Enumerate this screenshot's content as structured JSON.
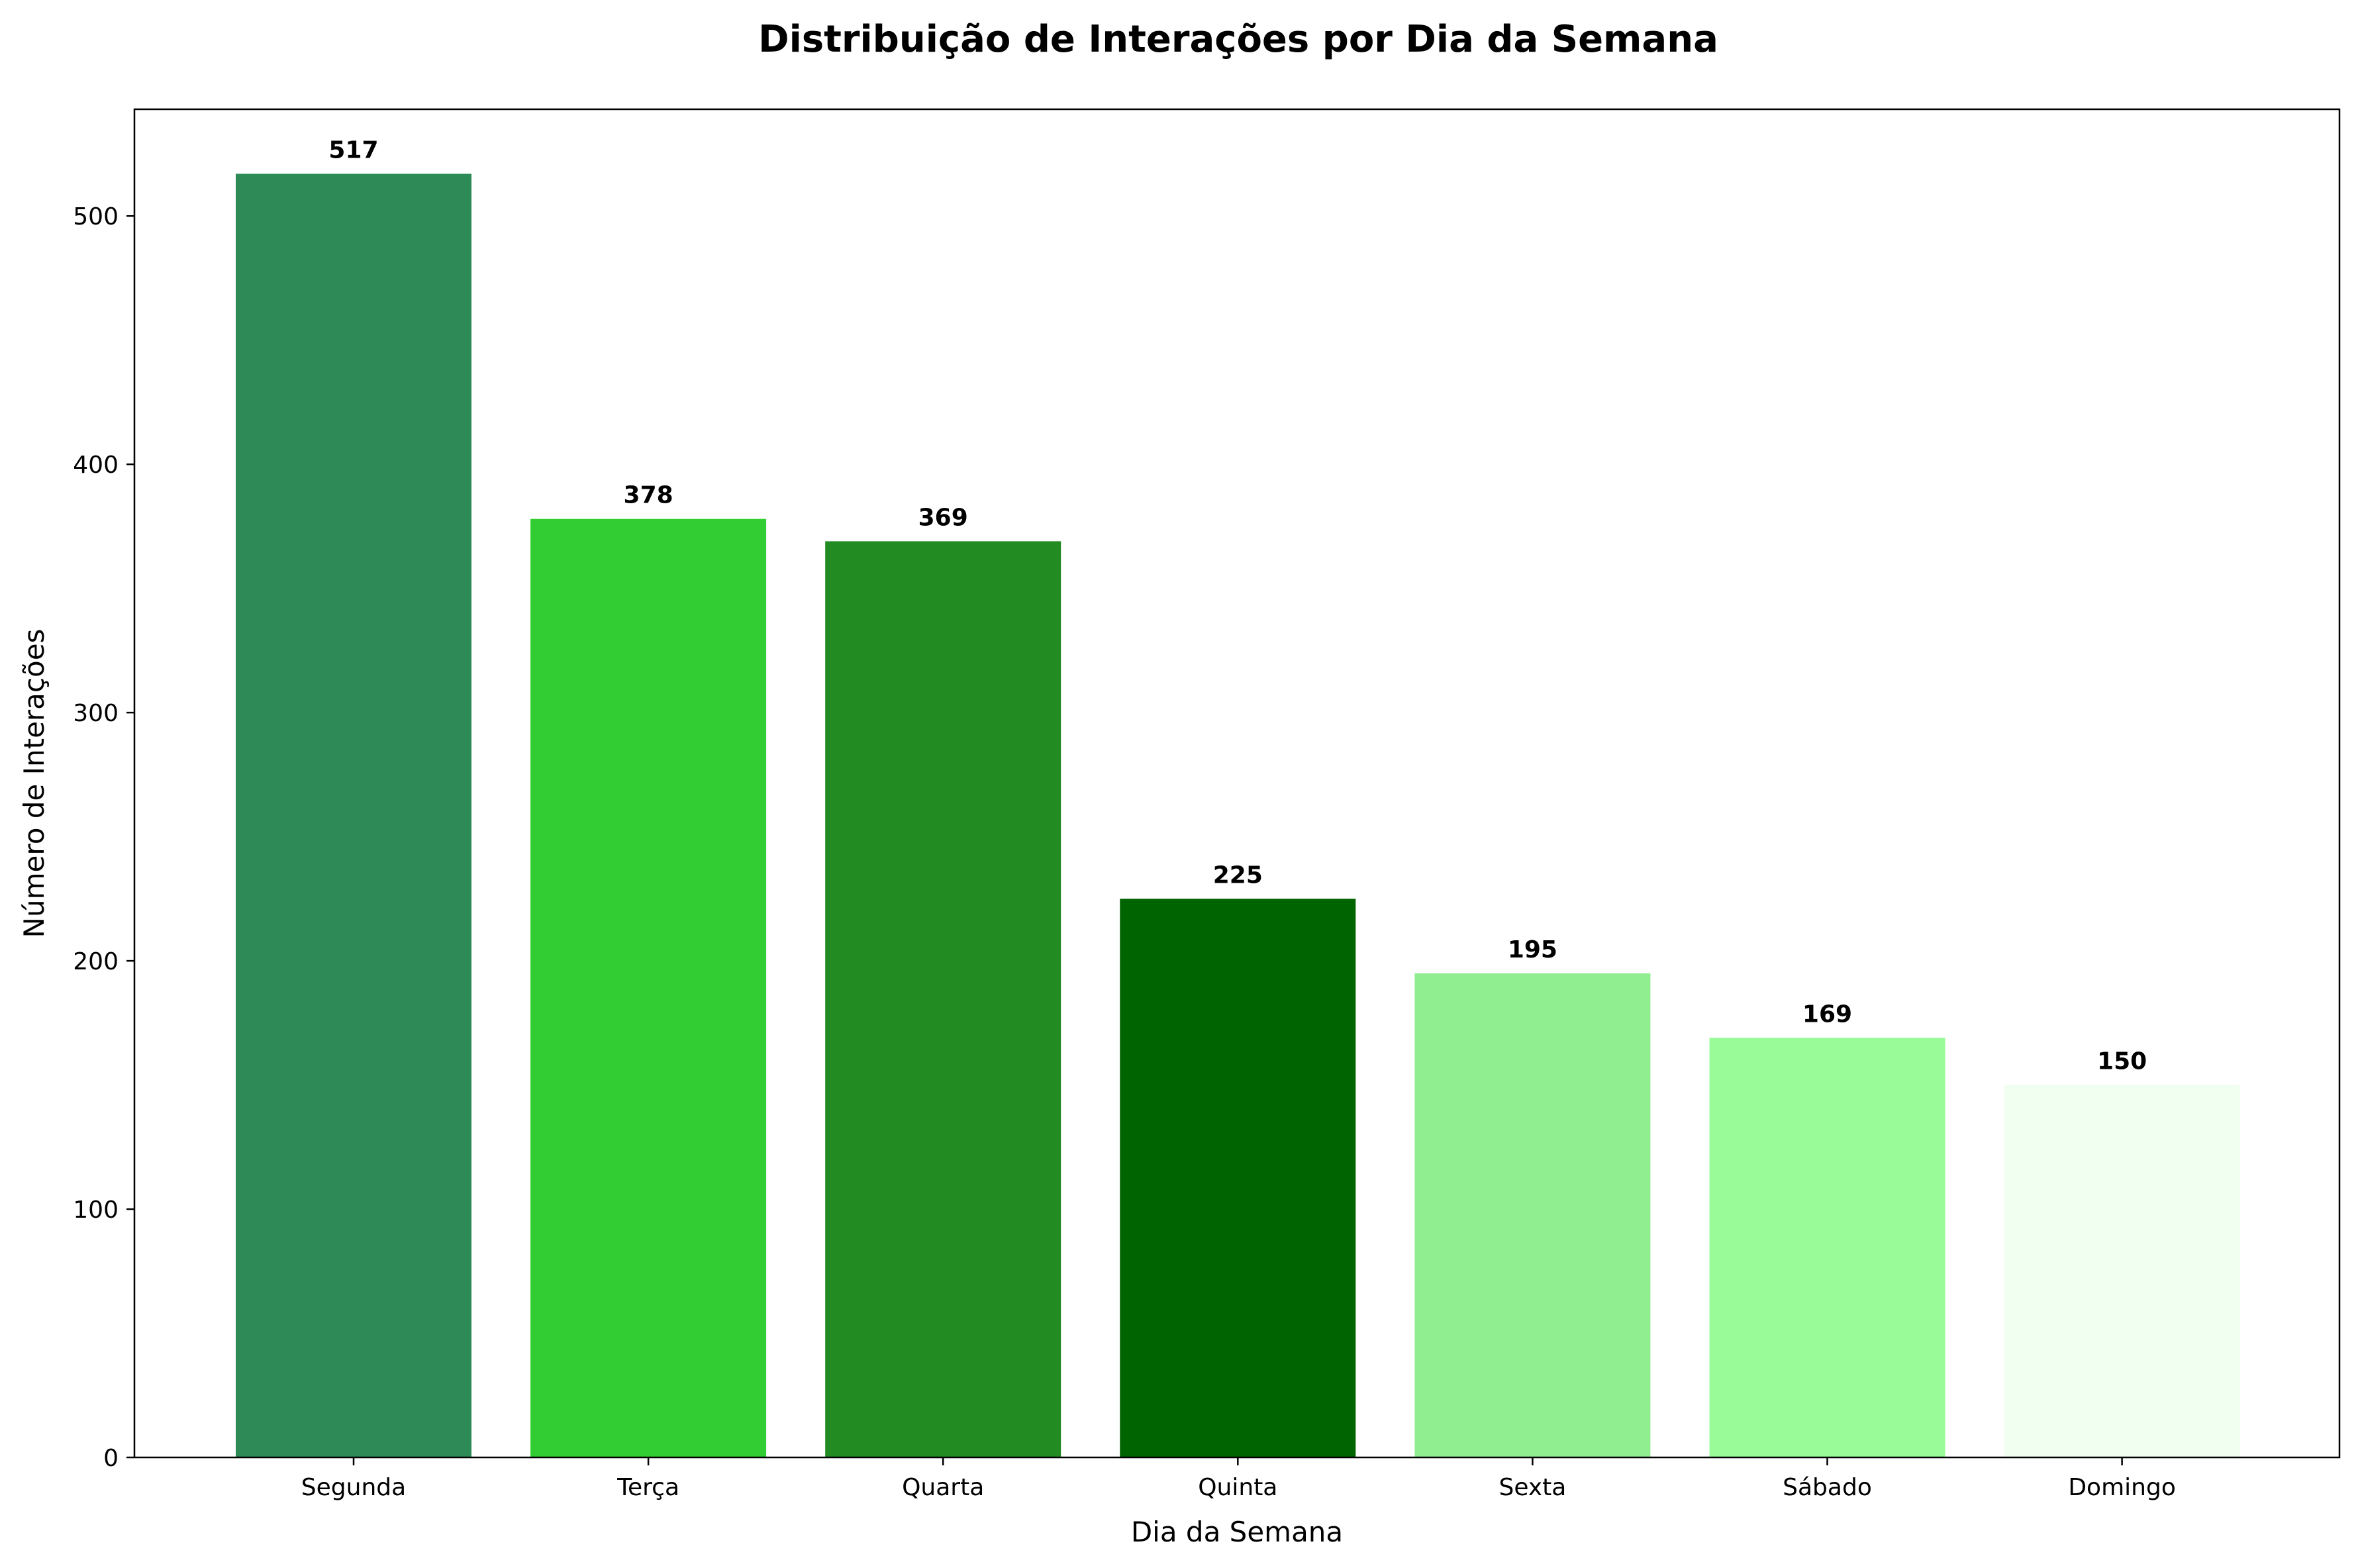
{
  "chart_data": {
    "type": "bar",
    "title": "Distribuição de Interações por Dia da Semana",
    "xlabel": "Dia da Semana",
    "ylabel": "Número de Interações",
    "categories": [
      "Segunda",
      "Terça",
      "Quarta",
      "Quinta",
      "Sexta",
      "Sábado",
      "Domingo"
    ],
    "values": [
      517,
      378,
      369,
      225,
      195,
      169,
      150
    ],
    "colors": [
      "#2e8b57",
      "#32cd32",
      "#228b22",
      "#006400",
      "#90ee90",
      "#98fb98",
      "#f0fff0"
    ],
    "ylim": [
      0,
      543
    ],
    "yticks": [
      0,
      100,
      200,
      300,
      400,
      500
    ],
    "grid": false,
    "legend": "none",
    "data_labels": true
  }
}
